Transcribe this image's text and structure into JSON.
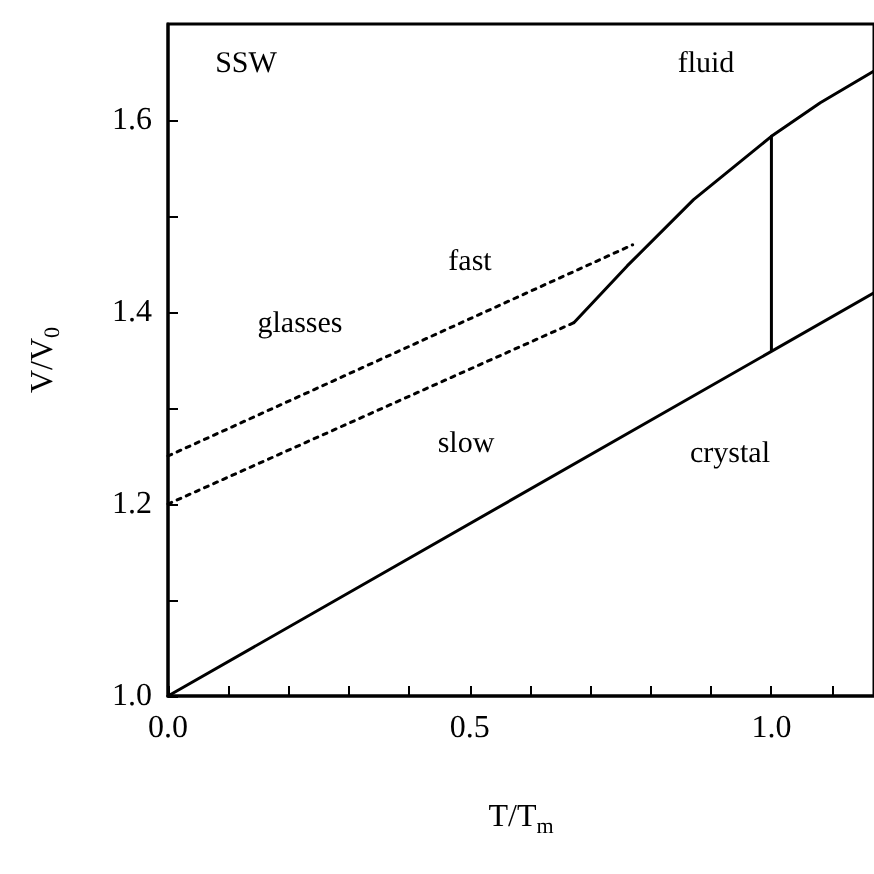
{
  "chart_data": {
    "type": "line",
    "xlabel": "T/T$_{m}$",
    "ylabel": "V/V$_{0}$",
    "xlim": [
      0,
      1.17
    ],
    "ylim": [
      1.0,
      1.7
    ],
    "xticks": [
      {
        "value": 0,
        "label": "0.0"
      },
      {
        "value": 0.1,
        "label": null
      },
      {
        "value": 0.2,
        "label": null
      },
      {
        "value": 0.3,
        "label": null
      },
      {
        "value": 0.4,
        "label": null
      },
      {
        "value": 0.5,
        "label": "0.5"
      },
      {
        "value": 0.6,
        "label": null
      },
      {
        "value": 0.7,
        "label": null
      },
      {
        "value": 0.8,
        "label": null
      },
      {
        "value": 0.9,
        "label": null
      },
      {
        "value": 1.0,
        "label": "1.0"
      },
      {
        "value": 1.1,
        "label": null
      }
    ],
    "yticks": [
      {
        "value": 1.0,
        "label": "1.0"
      },
      {
        "value": 1.1,
        "label": null
      },
      {
        "value": 1.2,
        "label": "1.2"
      },
      {
        "value": 1.3,
        "label": null
      },
      {
        "value": 1.4,
        "label": "1.4"
      },
      {
        "value": 1.5,
        "label": null
      },
      {
        "value": 1.6,
        "label": "1.6"
      }
    ],
    "grid": false,
    "marker": "none",
    "series": [
      {
        "color": "#000000",
        "line_style": "solid",
        "x": [
          0,
          1.17
        ],
        "values": [
          1.0,
          1.42
        ]
      },
      {
        "color": "#000000",
        "line_style": "solid",
        "x": [
          0.673,
          0.761,
          0.871,
          1.0,
          1.081,
          1.17
        ],
        "values": [
          1.389,
          1.448,
          1.517,
          1.583,
          1.618,
          1.651
        ]
      },
      {
        "color": "#000000",
        "line_style": "solid",
        "x": [
          1.0,
          1.0
        ],
        "values": [
          1.36,
          1.583
        ]
      },
      {
        "color": "#000000",
        "line_style": "dotted",
        "x": [
          0,
          0.77
        ],
        "values": [
          1.25,
          1.47
        ]
      },
      {
        "color": "#000000",
        "line_style": "dotted",
        "x": [
          0,
          0.673
        ],
        "values": [
          1.2,
          1.389
        ]
      }
    ],
    "annotations": [
      "SSW",
      "fluid",
      "fast",
      "glasses",
      "slow",
      "crystal"
    ]
  }
}
